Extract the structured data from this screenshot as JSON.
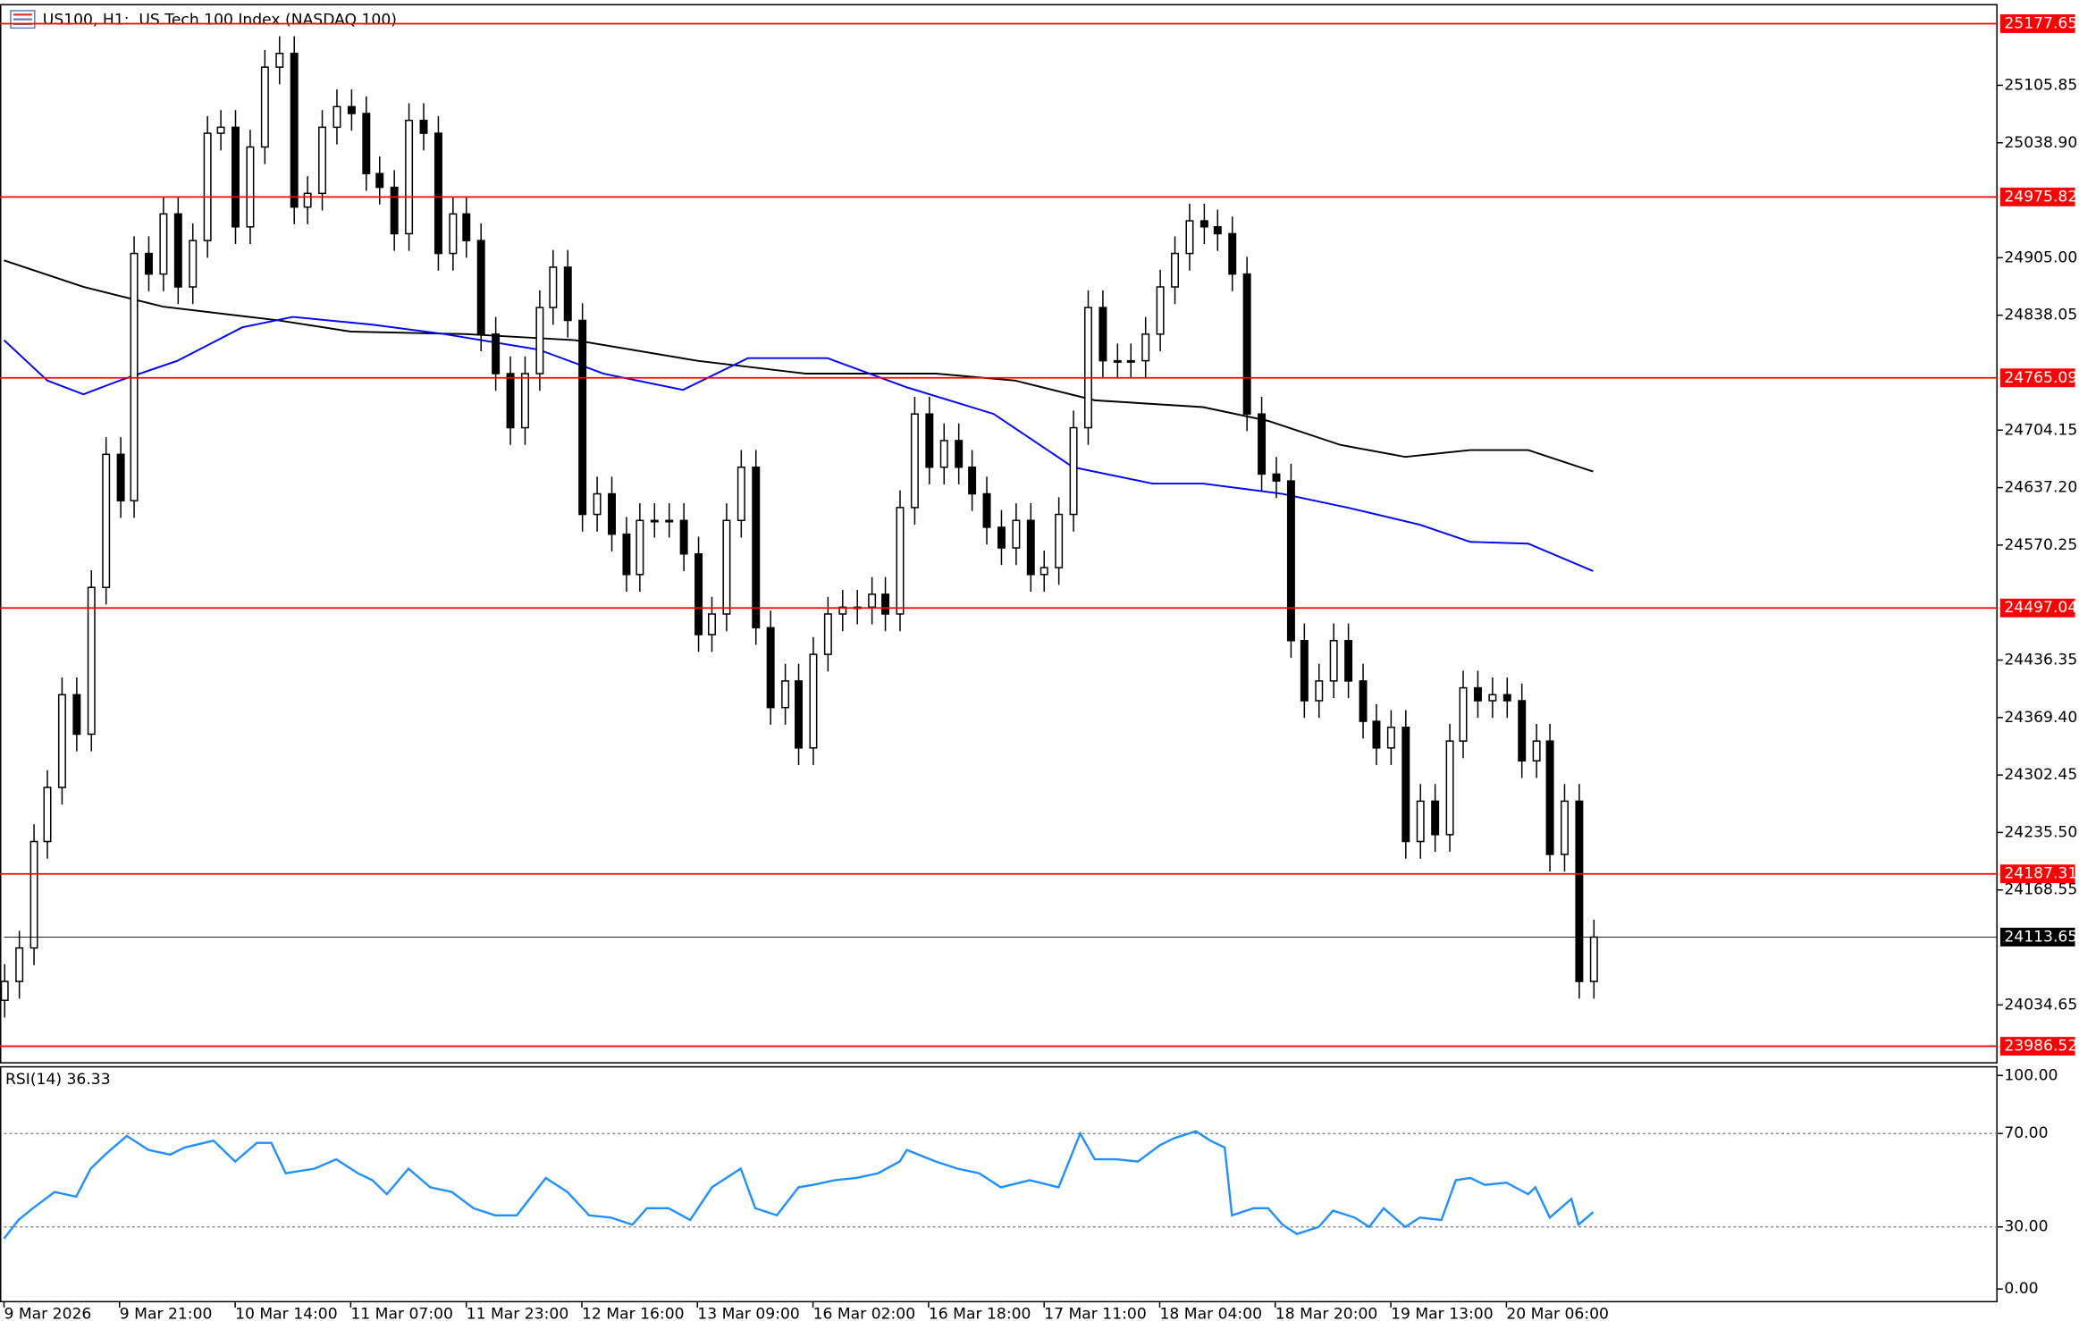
{
  "chart_data": [
    {
      "type": "candlestick",
      "title": "US100, H1:  US Tech 100 Index (NASDAQ 100)",
      "xlim": [
        0,
        276
      ],
      "ylim": [
        23968,
        25199
      ],
      "yticks": [
        25105.85,
        {
          "value": 25038.9,
          "label": "25038.90"
        },
        {
          "value": 24905,
          "label": "24905.00"
        },
        24838.05,
        24704.15,
        {
          "value": 24637.2,
          "label": "24637.20"
        },
        24570.25,
        24436.35,
        {
          "value": 24369.4,
          "label": "24369.40"
        },
        24302.45,
        {
          "value": 24235.5,
          "label": "24235.50"
        },
        24168.55,
        24034.65
      ],
      "levels": [
        25177.65,
        24975.82,
        24765.09,
        24497.04,
        24187.31,
        23986.52
      ],
      "level_color": "#ff0000",
      "current_price": 24113.65,
      "up_color": "#ffffff",
      "down_color": "#000000",
      "x": [
        0,
        2,
        4,
        6,
        8,
        10,
        12,
        14,
        16,
        18,
        20,
        22,
        24,
        26,
        28,
        30,
        32,
        34,
        36,
        38,
        40,
        42,
        44,
        46,
        48,
        50,
        52,
        54,
        56,
        58,
        60,
        62,
        64,
        66,
        68,
        70,
        72,
        74,
        76,
        78,
        80,
        82,
        84,
        86,
        88,
        90,
        92,
        94,
        96,
        98,
        100,
        102,
        104,
        106,
        108,
        110,
        112,
        114,
        116,
        118,
        120,
        122,
        124,
        126,
        128,
        130,
        132,
        134,
        136,
        138,
        140,
        142,
        144,
        146,
        148,
        150,
        152,
        154,
        156,
        158,
        160,
        162,
        164,
        166,
        168,
        170,
        172,
        174,
        176,
        178,
        180,
        182,
        184,
        186,
        188,
        190,
        192,
        194,
        196,
        198,
        200,
        202,
        204,
        206,
        208,
        210,
        212,
        214,
        216,
        218,
        220
      ],
      "open": [
        24040,
        24062,
        24101,
        24225,
        24288,
        24396,
        24350,
        24521,
        24676,
        24622,
        24910,
        24886,
        24956,
        24871,
        24925,
        25050,
        25057,
        24941,
        25034,
        25127,
        25143,
        24964,
        24980,
        25057,
        25081,
        25073,
        25003,
        24987,
        24933,
        25065,
        25050,
        24910,
        24956,
        24925,
        24816,
        24770,
        24707,
        24770,
        24847,
        24894,
        24832,
        24606,
        24630,
        24583,
        24536,
        24599,
        24599,
        24599,
        24560,
        24466,
        24490,
        24599,
        24661,
        24474,
        24381,
        24412,
        24334,
        24443,
        24490,
        24498,
        24498,
        24513,
        24490,
        24614,
        24723,
        24661,
        24692,
        24661,
        24630,
        24591,
        24567,
        24599,
        24536,
        24544,
        24606,
        24707,
        24847,
        24785,
        24785,
        24785,
        24816,
        24871,
        24910,
        24948,
        24941,
        24933,
        24886,
        24723,
        24653,
        24645,
        24459,
        24389,
        24412,
        24459,
        24412,
        24365,
        24334,
        24358,
        24225,
        24272,
        24233,
        24342,
        24404,
        24389,
        24396,
        24389,
        24319,
        24342,
        24210,
        24272,
        24062
      ],
      "high": [
        24082,
        24121,
        24245,
        24308,
        24416,
        24416,
        24541,
        24696,
        24696,
        24930,
        24930,
        24976,
        24976,
        24945,
        25070,
        25077,
        25077,
        25054,
        25147,
        25163,
        25163,
        25000,
        25077,
        25101,
        25101,
        25093,
        25023,
        25007,
        25085,
        25085,
        25070,
        24976,
        24976,
        24945,
        24836,
        24790,
        24790,
        24867,
        24914,
        24914,
        24852,
        24650,
        24650,
        24603,
        24619,
        24619,
        24619,
        24619,
        24580,
        24510,
        24619,
        24681,
        24681,
        24494,
        24432,
        24432,
        24463,
        24510,
        24518,
        24518,
        24533,
        24533,
        24634,
        24743,
        24743,
        24712,
        24712,
        24681,
        24650,
        24611,
        24619,
        24619,
        24564,
        24626,
        24727,
        24867,
        24867,
        24805,
        24805,
        24836,
        24891,
        24930,
        24968,
        24968,
        24961,
        24953,
        24906,
        24743,
        24673,
        24665,
        24479,
        24432,
        24479,
        24479,
        24432,
        24385,
        24378,
        24378,
        24292,
        24292,
        24362,
        24424,
        24424,
        24416,
        24416,
        24409,
        24362,
        24362,
        24292,
        24292,
        24134
      ],
      "low": [
        24020,
        24042,
        24081,
        24205,
        24268,
        24330,
        24330,
        24501,
        24602,
        24602,
        24866,
        24866,
        24851,
        24851,
        24905,
        25030,
        24921,
        24921,
        25014,
        25107,
        24944,
        24944,
        24960,
        25037,
        25053,
        24983,
        24967,
        24913,
        24913,
        25030,
        24890,
        24890,
        24905,
        24796,
        24750,
        24687,
        24687,
        24750,
        24827,
        24812,
        24586,
        24586,
        24563,
        24516,
        24516,
        24579,
        24579,
        24540,
        24446,
        24446,
        24470,
        24579,
        24454,
        24361,
        24361,
        24314,
        24314,
        24423,
        24470,
        24478,
        24478,
        24470,
        24470,
        24594,
        24641,
        24641,
        24641,
        24610,
        24571,
        24547,
        24547,
        24516,
        24516,
        24524,
        24586,
        24687,
        24765,
        24765,
        24765,
        24765,
        24796,
        24851,
        24890,
        24921,
        24913,
        24866,
        24703,
        24633,
        24625,
        24439,
        24369,
        24369,
        24392,
        24392,
        24345,
        24314,
        24314,
        24205,
        24205,
        24213,
        24213,
        24322,
        24369,
        24369,
        24369,
        24299,
        24299,
        24190,
        24190,
        24042,
        24042
      ],
      "close": [
        24062,
        24101,
        24225,
        24288,
        24396,
        24350,
        24521,
        24676,
        24622,
        24910,
        24886,
        24956,
        24871,
        24925,
        25050,
        25057,
        24941,
        25034,
        25127,
        25143,
        24964,
        24980,
        25057,
        25081,
        25073,
        25003,
        24987,
        24933,
        25065,
        25050,
        24910,
        24956,
        24925,
        24816,
        24770,
        24707,
        24770,
        24847,
        24894,
        24832,
        24606,
        24630,
        24583,
        24536,
        24599,
        24599,
        24599,
        24560,
        24466,
        24490,
        24599,
        24661,
        24474,
        24381,
        24412,
        24334,
        24443,
        24490,
        24498,
        24498,
        24513,
        24490,
        24614,
        24723,
        24661,
        24692,
        24661,
        24630,
        24591,
        24567,
        24599,
        24536,
        24544,
        24606,
        24707,
        24847,
        24785,
        24785,
        24785,
        24816,
        24871,
        24910,
        24948,
        24941,
        24933,
        24886,
        24723,
        24653,
        24645,
        24459,
        24389,
        24412,
        24459,
        24412,
        24365,
        24334,
        24358,
        24225,
        24272,
        24233,
        24342,
        24404,
        24389,
        24396,
        24389,
        24319,
        24342,
        24210,
        24272,
        24062,
        24113.65
      ],
      "lines": [
        {
          "color": "#000000",
          "x": [
            0,
            11,
            22,
            38,
            48,
            64,
            79,
            96,
            111,
            129,
            140,
            151,
            166,
            175,
            185,
            194,
            203,
            211,
            220
          ],
          "values": [
            24902,
            24871,
            24848,
            24832,
            24819,
            24816,
            24809,
            24785,
            24770,
            24770,
            24762,
            24739,
            24731,
            24715,
            24687,
            24673,
            24681,
            24681,
            24656
          ]
        },
        {
          "color": "#0000ff",
          "x": [
            0,
            6,
            11,
            16,
            24,
            33,
            40,
            51,
            61,
            74,
            83,
            94,
            103,
            114,
            125,
            137,
            148,
            159,
            166,
            177,
            186,
            196,
            203,
            211,
            220
          ],
          "values": [
            24809,
            24762,
            24746,
            24762,
            24785,
            24824,
            24836,
            24827,
            24816,
            24798,
            24770,
            24751,
            24788,
            24788,
            24754,
            24723,
            24661,
            24642,
            24642,
            24630,
            24614,
            24594,
            24574,
            24572,
            24540
          ]
        }
      ]
    },
    {
      "type": "line",
      "title": "RSI(14) 36.33",
      "color": "#1e90ff",
      "xlim": [
        0,
        276
      ],
      "ylim": [
        0,
        100
      ],
      "yticks": [
        {
          "value": 100,
          "label": "100.00"
        },
        {
          "value": 70,
          "label": "70.00"
        },
        {
          "value": 30,
          "label": "30.00"
        },
        {
          "value": 0,
          "label": "0.00"
        }
      ],
      "xticks": [
        {
          "value": 0,
          "label": "9 Mar 2026"
        },
        {
          "value": 16,
          "label": "9 Mar 21:00"
        },
        {
          "value": 32,
          "label": "10 Mar 14:00"
        },
        {
          "value": 48,
          "label": "11 Mar 07:00"
        },
        {
          "value": 64,
          "label": "11 Mar 23:00"
        },
        {
          "value": 80,
          "label": "12 Mar 16:00"
        },
        {
          "value": 96,
          "label": "13 Mar 09:00"
        },
        {
          "value": 112,
          "label": "16 Mar 02:00"
        },
        {
          "value": 128,
          "label": "16 Mar 18:00"
        },
        {
          "value": 144,
          "label": "17 Mar 11:00"
        },
        {
          "value": 160,
          "label": "18 Mar 04:00"
        },
        {
          "value": 176,
          "label": "18 Mar 20:00"
        },
        {
          "value": 192,
          "label": "19 Mar 13:00"
        },
        {
          "value": 208,
          "label": "20 Mar 06:00"
        }
      ],
      "x": [
        0,
        2,
        4,
        7,
        10,
        12,
        14,
        17,
        20,
        23,
        25,
        29,
        32,
        35,
        37,
        39,
        43,
        46,
        49,
        51,
        53,
        56,
        59,
        62,
        65,
        68,
        71,
        74,
        75,
        78,
        81,
        84,
        87,
        89,
        92,
        95,
        98,
        102,
        104,
        107,
        110,
        112,
        115,
        118,
        121,
        124,
        125,
        129,
        132,
        135,
        138,
        142,
        146,
        149,
        151,
        154,
        157,
        160,
        162,
        165,
        167,
        169,
        170,
        173,
        175,
        177,
        179,
        182,
        184,
        187,
        189,
        191,
        194,
        196,
        199,
        201,
        203,
        205,
        208,
        211,
        212,
        214,
        217,
        218,
        220
      ],
      "values": [
        25,
        33,
        38,
        45,
        43,
        55,
        61,
        69,
        63,
        61,
        64,
        67,
        58,
        66,
        66,
        53,
        55,
        59,
        53,
        50,
        44,
        55,
        47,
        45,
        38,
        35,
        35,
        47,
        51,
        45,
        35,
        34,
        31,
        38,
        38,
        33,
        47,
        55,
        38,
        35,
        47,
        48,
        50,
        51,
        53,
        58,
        63,
        58,
        55,
        53,
        47,
        50,
        47,
        70,
        59,
        59,
        58,
        65,
        68,
        71,
        67,
        64,
        35,
        38,
        38,
        31,
        27,
        30,
        37,
        34,
        30,
        38,
        30,
        34,
        33,
        50,
        51,
        48,
        49,
        44,
        47,
        34,
        42,
        31,
        36.33
      ]
    }
  ]
}
